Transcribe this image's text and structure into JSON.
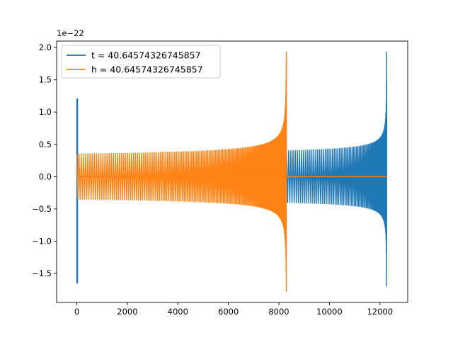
{
  "chart_data": {
    "type": "line",
    "title": "",
    "xlabel": "",
    "ylabel": "",
    "offset_label": "1e−22",
    "xlim": [
      -800,
      13100
    ],
    "ylim": [
      -1.95,
      2.1
    ],
    "x_ticks": [
      0,
      2000,
      4000,
      6000,
      8000,
      10000,
      12000
    ],
    "y_ticks": [
      -1.5,
      -1.0,
      -0.5,
      0.0,
      0.5,
      1.0,
      1.5,
      2.0
    ],
    "x_tick_labels": [
      "0",
      "2000",
      "4000",
      "6000",
      "8000",
      "10000",
      "12000"
    ],
    "y_tick_labels": [
      "−1.5",
      "−1.0",
      "−0.5",
      "0.0",
      "0.5",
      "1.0",
      "1.5",
      "2.0"
    ],
    "grid": false,
    "legend_position": "top-left",
    "colors": {
      "t": "#1f77b4",
      "h": "#ff7f0e"
    },
    "series": [
      {
        "name": "t = 40.64574326745857",
        "segments": [
          {
            "x_start": 0,
            "x_end": 30,
            "amp_pos_start": 1.2,
            "amp_neg_start": -1.65
          },
          {
            "x_start": 30,
            "x_end": 8300,
            "flat_value": 0.0
          },
          {
            "x_start": 8300,
            "x_end": 12270,
            "amp_start": 0.4,
            "amp_pos_end": 1.93,
            "amp_neg_end": -1.78
          },
          {
            "x_start": 12270,
            "x_end": 12300,
            "flat_value": 0.0
          }
        ]
      },
      {
        "name": "h = 40.64574326745857",
        "segments": [
          {
            "x_start": 0,
            "x_end": 8300,
            "amp_start": 0.35,
            "amp_pos_end": 1.93,
            "amp_neg_end": -1.78
          },
          {
            "x_start": 8300,
            "x_end": 12300,
            "flat_value": 0.0
          }
        ]
      }
    ]
  }
}
